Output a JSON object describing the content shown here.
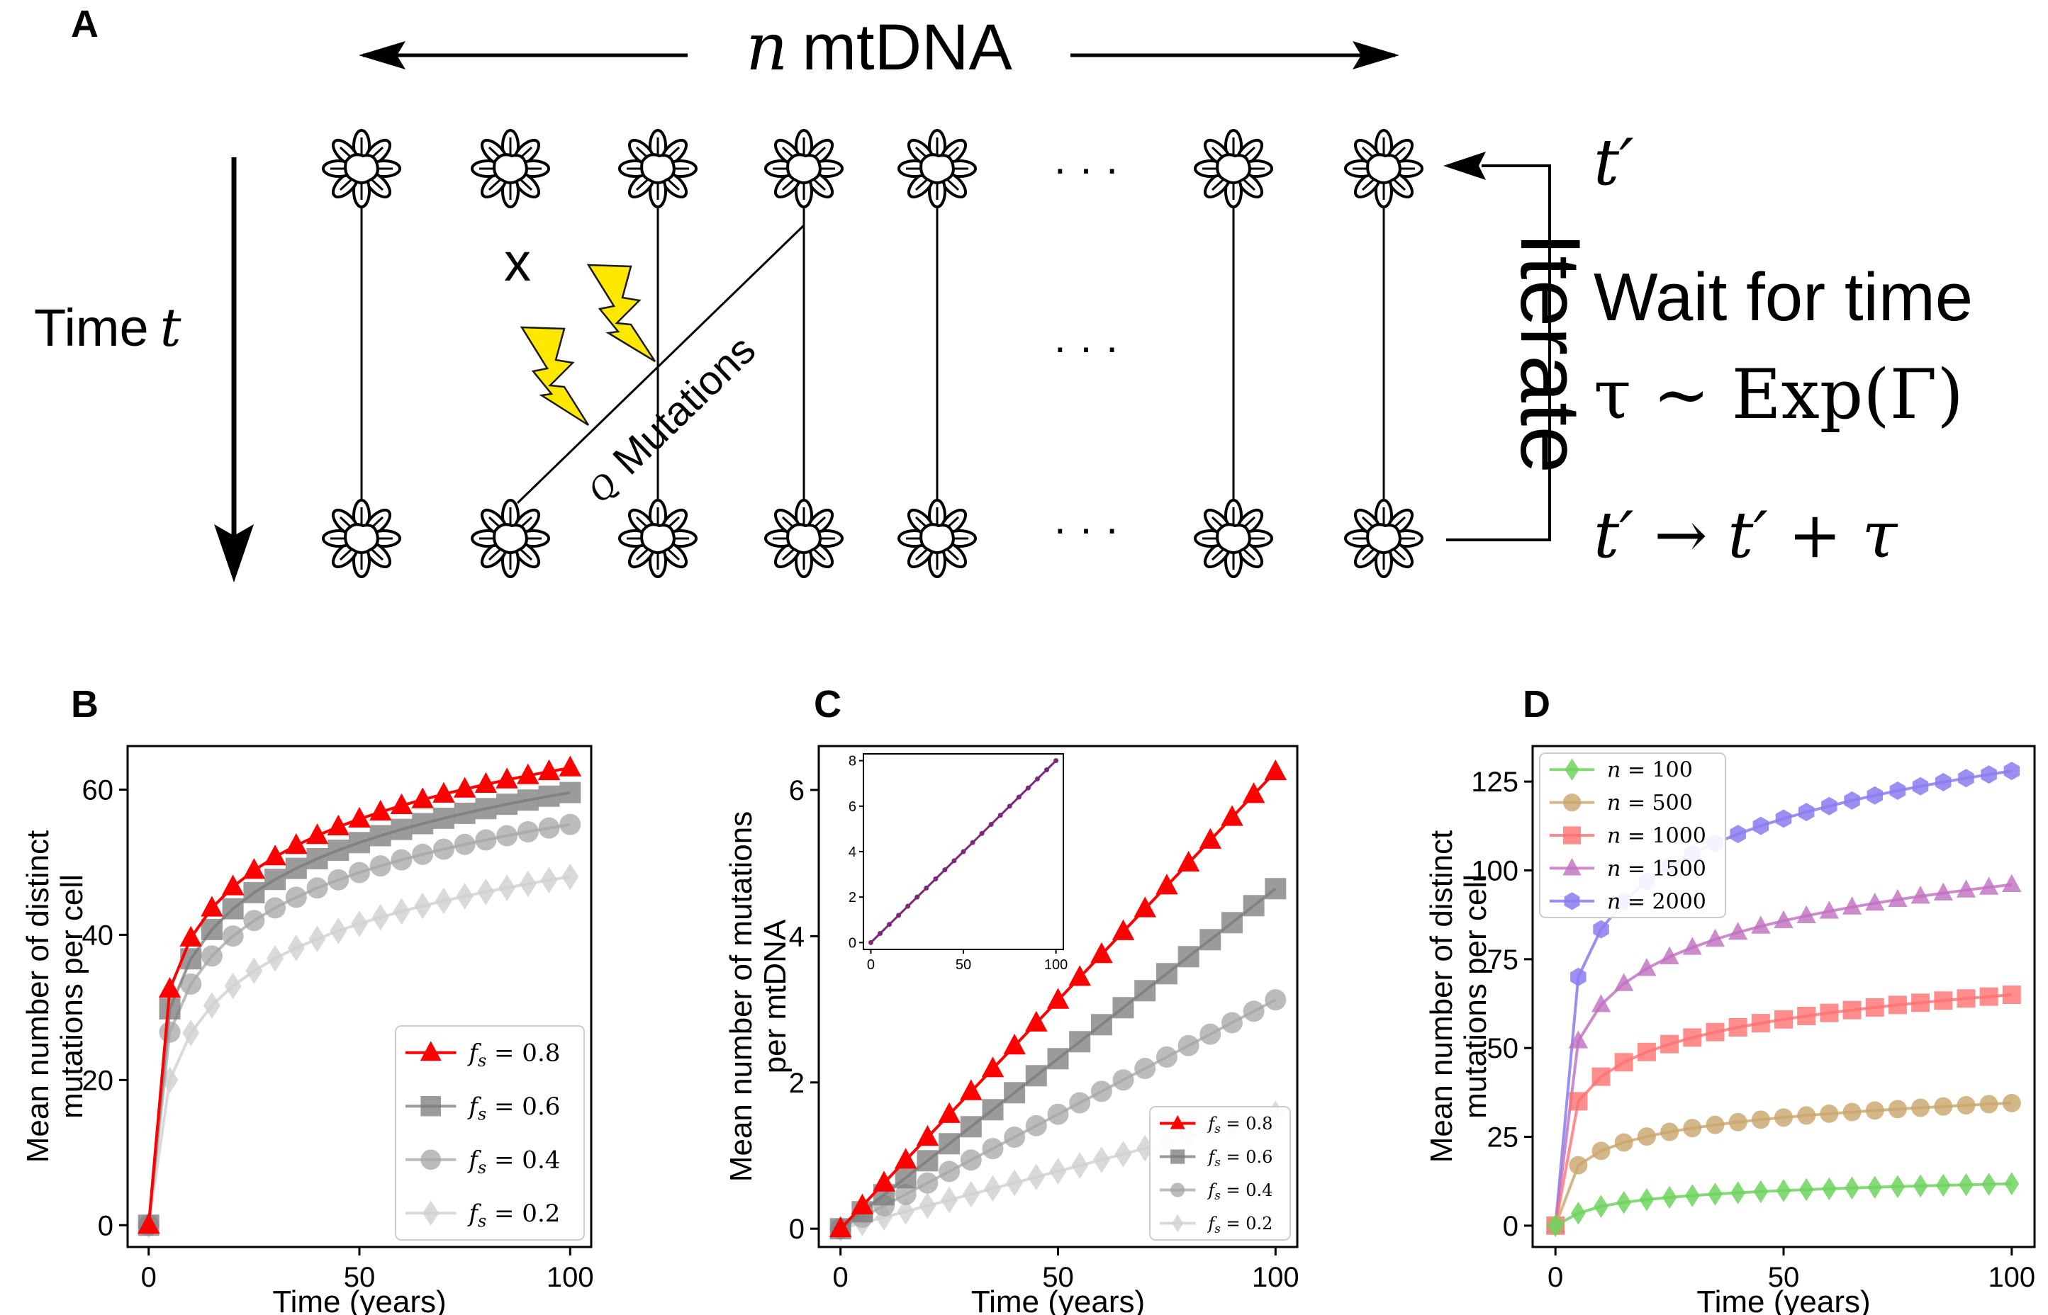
{
  "panel_a": {
    "label": "A",
    "n_var": "n",
    "n_title": "mtDNA",
    "time_word": "Time",
    "time_var": "t",
    "x_mark": "x",
    "q_var": "Q",
    "mutations_label": "Mutations",
    "dots": "· · ·",
    "iterate_label": "Iterate",
    "t_prime": "t′",
    "wait_line1": "Wait for time",
    "wait_line2": "τ ∼ Exp(Γ)",
    "update_line": "t′ → t′ + τ"
  },
  "chart_data": [
    {
      "panel": "B",
      "type": "line",
      "xlabel": "Time (years)",
      "ylabel_lines": [
        "Mean number of distinct",
        "mutations per cell"
      ],
      "xlim": [
        -5,
        105
      ],
      "ylim": [
        -3,
        66
      ],
      "xticks": [
        0,
        50,
        100
      ],
      "yticks": [
        0,
        20,
        40,
        60
      ],
      "legend_position": "lower-right",
      "series": [
        {
          "name": "f_s = 0.8",
          "label_var": "f",
          "label_sub": "s",
          "label_val": " = 0.8",
          "color": "#ff0000",
          "alpha": 1.0,
          "marker": "triangle",
          "A": 32.5,
          "B": 30.5
        },
        {
          "name": "f_s = 0.6",
          "label_var": "f",
          "label_sub": "s",
          "label_val": " = 0.6",
          "color": "#7a7a7a",
          "alpha": 0.75,
          "marker": "square",
          "A": 29.8,
          "B": 29.8
        },
        {
          "name": "f_s = 0.4",
          "label_var": "f",
          "label_sub": "s",
          "label_val": " = 0.4",
          "color": "#a6a6a6",
          "alpha": 0.75,
          "marker": "circle",
          "A": 26.6,
          "B": 28.6
        },
        {
          "name": "f_s = 0.2",
          "label_var": "f",
          "label_sub": "s",
          "label_val": " = 0.2",
          "color": "#d0d0d0",
          "alpha": 0.8,
          "marker": "diamond",
          "A": 20.0,
          "B": 28.0
        }
      ]
    },
    {
      "panel": "C",
      "type": "line",
      "xlabel": "Time (years)",
      "ylabel_lines": [
        "Mean number of mutations",
        "per mtDNA"
      ],
      "xlim": [
        -5,
        105
      ],
      "ylim": [
        -0.25,
        6.6
      ],
      "xticks": [
        0,
        50,
        100
      ],
      "yticks": [
        0,
        2,
        4,
        6
      ],
      "legend_position": "lower-right",
      "series": [
        {
          "name": "f_s = 0.8",
          "label_var": "f",
          "label_sub": "s",
          "label_val": " = 0.8",
          "color": "#ff0000",
          "alpha": 1.0,
          "marker": "triangle",
          "slope": 0.0625
        },
        {
          "name": "f_s = 0.6",
          "label_var": "f",
          "label_sub": "s",
          "label_val": " = 0.6",
          "color": "#7a7a7a",
          "alpha": 0.75,
          "marker": "square",
          "slope": 0.0465
        },
        {
          "name": "f_s = 0.4",
          "label_var": "f",
          "label_sub": "s",
          "label_val": " = 0.4",
          "color": "#a6a6a6",
          "alpha": 0.75,
          "marker": "circle",
          "slope": 0.0313
        },
        {
          "name": "f_s = 0.2",
          "label_var": "f",
          "label_sub": "s",
          "label_val": " = 0.2",
          "color": "#d0d0d0",
          "alpha": 0.8,
          "marker": "diamond",
          "slope": 0.0157
        }
      ],
      "inset": {
        "xlim": [
          -4,
          104
        ],
        "ylim": [
          -0.3,
          8.3
        ],
        "xticks": [
          0,
          50,
          100
        ],
        "yticks": [
          0,
          2,
          4,
          6,
          8
        ],
        "series": [
          {
            "name": "overlay",
            "color": "#7b2a7b",
            "slope": 0.08
          }
        ]
      }
    },
    {
      "panel": "D",
      "type": "line",
      "xlabel": "Time (years)",
      "ylabel_lines": [
        "Mean number of distinct",
        "mutations per cell"
      ],
      "xlim": [
        -5,
        105
      ],
      "ylim": [
        -6,
        135
      ],
      "xticks": [
        0,
        50,
        100
      ],
      "yticks": [
        0,
        25,
        50,
        75,
        100,
        125
      ],
      "legend_position": "upper-left",
      "series": [
        {
          "name": "n = 100",
          "label_var": "n",
          "label_sub": "",
          "label_val": " = 100",
          "color": "#6ed45e",
          "alpha": 0.85,
          "marker": "diamond",
          "A": 3.5,
          "B": 8.3
        },
        {
          "name": "n = 500",
          "label_var": "n",
          "label_sub": "",
          "label_val": " = 500",
          "color": "#c9a56b",
          "alpha": 0.8,
          "marker": "circle",
          "A": 17.0,
          "B": 17.5
        },
        {
          "name": "n = 1000",
          "label_var": "n",
          "label_sub": "",
          "label_val": " = 1000",
          "color": "#ff7070",
          "alpha": 0.8,
          "marker": "square",
          "A": 35.0,
          "B": 30.0
        },
        {
          "name": "n = 1500",
          "label_var": "n",
          "label_sub": "",
          "label_val": " = 1500",
          "color": "#bf6fbf",
          "alpha": 0.8,
          "marker": "triangle",
          "A": 52.0,
          "B": 44.0
        },
        {
          "name": "n = 2000",
          "label_var": "n",
          "label_sub": "",
          "label_val": " = 2000",
          "color": "#8a7cf0",
          "alpha": 0.85,
          "marker": "hexagon",
          "A": 70.0,
          "B": 58.0
        }
      ]
    }
  ]
}
